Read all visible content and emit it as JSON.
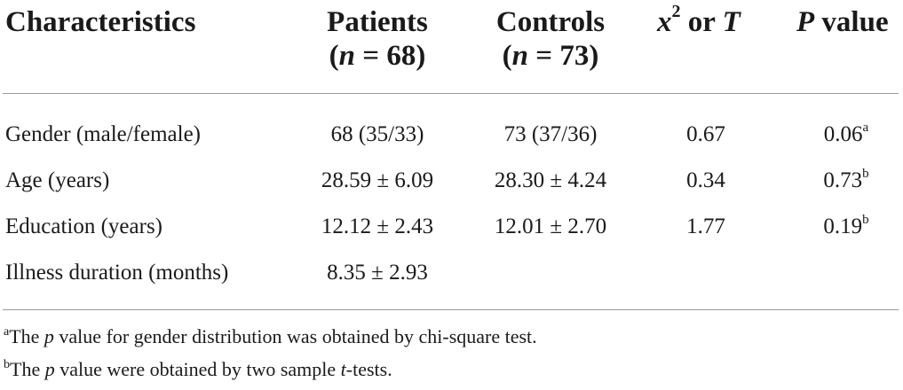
{
  "header": {
    "characteristics": "Characteristics",
    "patients_line1": "Patients",
    "patients_n_label": "n",
    "patients_n_value": " = 68)",
    "controls_line1": "Controls",
    "controls_n_label": "n",
    "controls_n_value": " = 73)",
    "stat_x": "x",
    "stat_exp": "2",
    "stat_or": " or ",
    "stat_t": "T",
    "p_label": "P",
    "p_value_word": " value"
  },
  "rows": [
    {
      "label": "Gender (male/female)",
      "patients": "68 (35/33)",
      "controls": "73 (37/36)",
      "stat": "0.67",
      "p": "0.06",
      "p_sup": "a"
    },
    {
      "label": "Age (years)",
      "patients": "28.59 ± 6.09",
      "controls": "28.30 ± 4.24",
      "stat": "0.34",
      "p": "0.73",
      "p_sup": "b"
    },
    {
      "label": "Education (years)",
      "patients": "12.12 ± 2.43",
      "controls": "12.01 ± 2.70",
      "stat": "1.77",
      "p": "0.19",
      "p_sup": "b"
    },
    {
      "label": "Illness duration (months)",
      "patients": "8.35 ± 2.93",
      "controls": "",
      "stat": "",
      "p": "",
      "p_sup": ""
    }
  ],
  "notes": [
    {
      "mark": "a",
      "before": "The ",
      "ital": "p",
      "after": " value for gender distribution was obtained by chi-square test.",
      "ital2": "",
      "after2": ""
    },
    {
      "mark": "b",
      "before": "The ",
      "ital": "p",
      "after": " value were obtained by two sample ",
      "ital2": "t",
      "after2": "-tests."
    }
  ]
}
